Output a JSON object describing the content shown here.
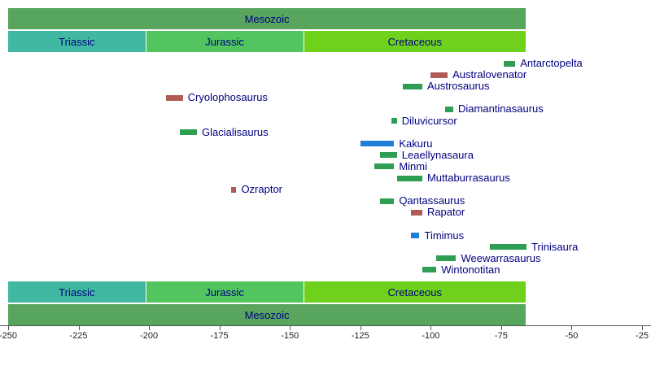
{
  "chart_data": {
    "type": "timeline",
    "description": "Geologic timeline of dinosaur genera through the Mesozoic, in millions of years ago",
    "axis": {
      "min": -250,
      "max": -25,
      "ticks": [
        -250,
        -225,
        -200,
        -175,
        -150,
        -125,
        -100,
        -75,
        -50,
        -25
      ]
    },
    "label_color": "#000080",
    "eras": [
      {
        "name": "Mesozoic",
        "start": -250,
        "end": -66,
        "color": "#58a55e"
      }
    ],
    "periods": [
      {
        "name": "Triassic",
        "start": -250,
        "end": -201,
        "color": "#41b8a2"
      },
      {
        "name": "Jurassic",
        "start": -201,
        "end": -145,
        "color": "#52c55e"
      },
      {
        "name": "Cretaceous",
        "start": -145,
        "end": -66,
        "color": "#6fd11c"
      }
    ],
    "taxa": [
      {
        "name": "Antarctopelta",
        "start": -74,
        "end": -70,
        "color": "#2e9e53",
        "row": 0
      },
      {
        "name": "Australovenator",
        "start": -100,
        "end": -94,
        "color": "#b05c56",
        "row": 1
      },
      {
        "name": "Austrosaurus",
        "start": -110,
        "end": -103,
        "color": "#2e9e53",
        "row": 2
      },
      {
        "name": "Cryolophosaurus",
        "start": -194,
        "end": -188,
        "color": "#b05c56",
        "row": 3
      },
      {
        "name": "Diamantinasaurus",
        "start": -95,
        "end": -92,
        "color": "#2e9e53",
        "row": 4
      },
      {
        "name": "Diluvicursor",
        "start": -114,
        "end": -112,
        "color": "#2e9e53",
        "row": 5
      },
      {
        "name": "Glacialisaurus",
        "start": -189,
        "end": -183,
        "color": "#2e9e53",
        "row": 6
      },
      {
        "name": "Kakuru",
        "start": -125,
        "end": -113,
        "color": "#1e7fd7",
        "row": 7
      },
      {
        "name": "Leaellynasaura",
        "start": -118,
        "end": -112,
        "color": "#2e9e53",
        "row": 8
      },
      {
        "name": "Minmi",
        "start": -120,
        "end": -113,
        "color": "#2e9e53",
        "row": 9
      },
      {
        "name": "Muttaburrasaurus",
        "start": -112,
        "end": -103,
        "color": "#2e9e53",
        "row": 10
      },
      {
        "name": "Ozraptor",
        "start": -171,
        "end": -169,
        "color": "#b05c56",
        "row": 11
      },
      {
        "name": "Qantassaurus",
        "start": -118,
        "end": -113,
        "color": "#2e9e53",
        "row": 12
      },
      {
        "name": "Rapator",
        "start": -107,
        "end": -103,
        "color": "#b05c56",
        "row": 13
      },
      {
        "name": "Timimus",
        "start": -107,
        "end": -104,
        "color": "#1e7fd7",
        "row": 15
      },
      {
        "name": "Trinisaura",
        "start": -79,
        "end": -66,
        "color": "#2e9e53",
        "row": 16
      },
      {
        "name": "Weewarrasaurus",
        "start": -98,
        "end": -91,
        "color": "#2e9e53",
        "row": 17
      },
      {
        "name": "Wintonotitan",
        "start": -103,
        "end": -98,
        "color": "#2e9e53",
        "row": 18
      }
    ]
  }
}
